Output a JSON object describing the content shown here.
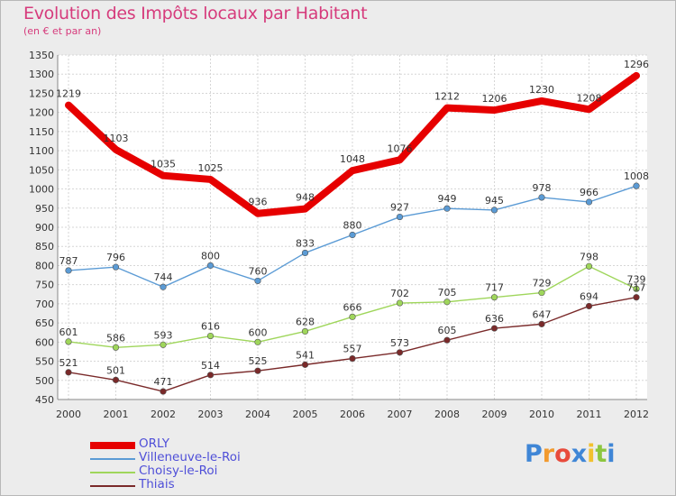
{
  "header": {
    "title": "Evolution des Impôts locaux par Habitant",
    "subtitle": "(en € et par an)"
  },
  "chart_data": {
    "type": "line",
    "title": "Evolution des Impôts locaux par Habitant",
    "subtitle": "(en € et par an)",
    "x": [
      2000,
      2001,
      2002,
      2003,
      2004,
      2005,
      2006,
      2007,
      2008,
      2009,
      2010,
      2011,
      2012
    ],
    "ylim": [
      450,
      1350
    ],
    "yticks": [
      450,
      500,
      550,
      600,
      650,
      700,
      750,
      800,
      850,
      900,
      950,
      1000,
      1050,
      1100,
      1150,
      1200,
      1250,
      1300,
      1350
    ],
    "grid": true,
    "legend_position": "bottom-left",
    "series": [
      {
        "name": "ORLY",
        "color": "#e60000",
        "values": [
          1219,
          1103,
          1035,
          1025,
          936,
          948,
          1048,
          1076,
          1212,
          1206,
          1230,
          1208,
          1296
        ]
      },
      {
        "name": "Villeneuve-le-Roi",
        "color": "#5b9bd5",
        "values": [
          787,
          796,
          744,
          800,
          760,
          833,
          880,
          927,
          949,
          945,
          978,
          966,
          1008
        ]
      },
      {
        "name": "Choisy-le-Roi",
        "color": "#9fd65b",
        "values": [
          601,
          586,
          593,
          616,
          600,
          628,
          666,
          702,
          705,
          717,
          729,
          798,
          739
        ]
      },
      {
        "name": "Thiais",
        "color": "#7a2a2a",
        "values": [
          521,
          501,
          471,
          514,
          525,
          541,
          557,
          573,
          605,
          636,
          647,
          694,
          717
        ]
      }
    ]
  },
  "logo": {
    "letters": [
      "P",
      "r",
      "o",
      "x",
      "i",
      "t",
      "i"
    ],
    "colors": [
      "#3f86d6",
      "#f29a2e",
      "#e84b3c",
      "#3f86d6",
      "#f2c12e",
      "#8cc63f",
      "#3f86d6"
    ]
  }
}
